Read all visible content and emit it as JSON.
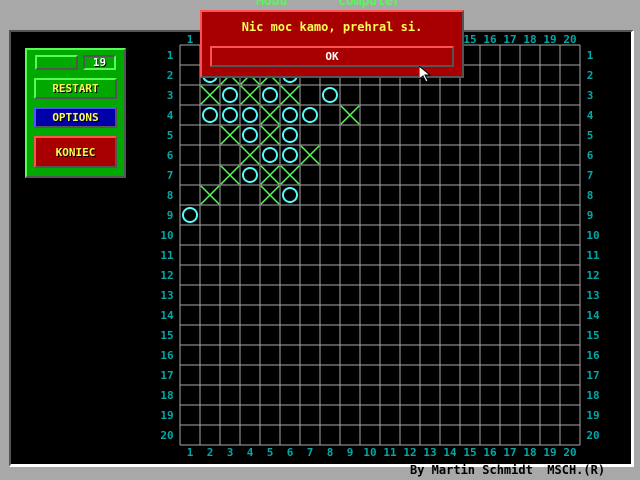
{
  "header": {
    "player_label": "Mobu",
    "computer_label": "Computer"
  },
  "side_panel": {
    "name_value": "",
    "score": "19",
    "restart_label": "RESTART",
    "options_label": "OPTIONS",
    "quit_label": "KONIEC"
  },
  "board": {
    "columns": 20,
    "rows": 20,
    "colors": {
      "grid": "#a8a8a8",
      "labels": "#00a8a8",
      "x": "#54fc54",
      "o": "#54fcfc"
    },
    "cells": [
      {
        "row": 2,
        "col": 2,
        "mark": "O"
      },
      {
        "row": 2,
        "col": 3,
        "mark": "X"
      },
      {
        "row": 2,
        "col": 4,
        "mark": "X"
      },
      {
        "row": 2,
        "col": 5,
        "mark": "X"
      },
      {
        "row": 2,
        "col": 6,
        "mark": "O"
      },
      {
        "row": 3,
        "col": 2,
        "mark": "X"
      },
      {
        "row": 3,
        "col": 3,
        "mark": "O"
      },
      {
        "row": 3,
        "col": 4,
        "mark": "X"
      },
      {
        "row": 3,
        "col": 5,
        "mark": "O"
      },
      {
        "row": 3,
        "col": 6,
        "mark": "X"
      },
      {
        "row": 3,
        "col": 8,
        "mark": "O"
      },
      {
        "row": 4,
        "col": 2,
        "mark": "O"
      },
      {
        "row": 4,
        "col": 3,
        "mark": "O"
      },
      {
        "row": 4,
        "col": 4,
        "mark": "O"
      },
      {
        "row": 4,
        "col": 5,
        "mark": "X"
      },
      {
        "row": 4,
        "col": 6,
        "mark": "O"
      },
      {
        "row": 4,
        "col": 7,
        "mark": "O"
      },
      {
        "row": 4,
        "col": 9,
        "mark": "X"
      },
      {
        "row": 5,
        "col": 3,
        "mark": "X"
      },
      {
        "row": 5,
        "col": 4,
        "mark": "O"
      },
      {
        "row": 5,
        "col": 5,
        "mark": "X"
      },
      {
        "row": 5,
        "col": 6,
        "mark": "O"
      },
      {
        "row": 6,
        "col": 4,
        "mark": "X"
      },
      {
        "row": 6,
        "col": 5,
        "mark": "O"
      },
      {
        "row": 6,
        "col": 6,
        "mark": "O"
      },
      {
        "row": 6,
        "col": 7,
        "mark": "X"
      },
      {
        "row": 7,
        "col": 3,
        "mark": "X"
      },
      {
        "row": 7,
        "col": 4,
        "mark": "O"
      },
      {
        "row": 7,
        "col": 5,
        "mark": "X"
      },
      {
        "row": 7,
        "col": 6,
        "mark": "X"
      },
      {
        "row": 8,
        "col": 2,
        "mark": "X"
      },
      {
        "row": 8,
        "col": 5,
        "mark": "X"
      },
      {
        "row": 8,
        "col": 6,
        "mark": "O"
      },
      {
        "row": 9,
        "col": 1,
        "mark": "O"
      }
    ]
  },
  "footer": {
    "author": "By Martin Schmidt",
    "mark": "MSCH.(R)"
  },
  "dialog": {
    "message": "Nic moc kamo, prehral si.",
    "ok_label": "OK"
  }
}
